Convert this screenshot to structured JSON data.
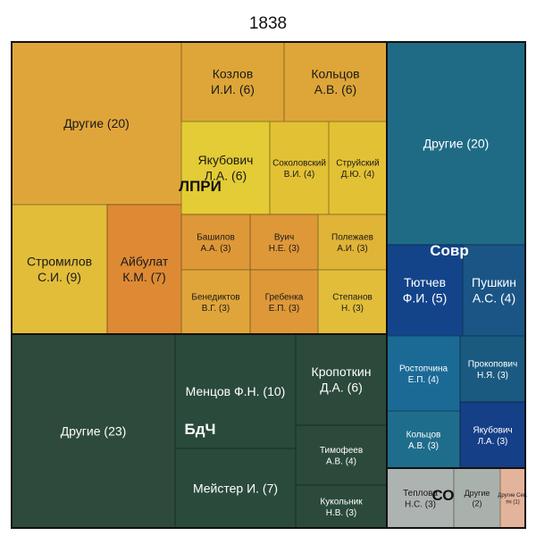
{
  "chart_data": {
    "type": "treemap",
    "title": "1838",
    "groups": [
      {
        "label": "ЛПРИ",
        "color": "#c99a2e",
        "cells": [
          {
            "label": "Другие (20)",
            "value": 20,
            "color": "#e0a53a"
          },
          {
            "label": "Стромилов С.И. (9)",
            "value": 9,
            "color": "#e2bd3a"
          },
          {
            "label": "Айбулат К.М. (7)",
            "value": 7,
            "color": "#de8a35"
          },
          {
            "label": "Козлов И.И. (6)",
            "value": 6,
            "color": "#dea638"
          },
          {
            "label": "Кольцов А.В. (6)",
            "value": 6,
            "color": "#dea638"
          },
          {
            "label": "Якубович Л.А. (6)",
            "value": 6,
            "color": "#e3cc35"
          },
          {
            "label": "Соколовский В.И. (4)",
            "value": 4,
            "color": "#e3c134"
          },
          {
            "label": "Струйский Д.Ю. (4)",
            "value": 4,
            "color": "#e3c134"
          },
          {
            "label": "Башилов А.А. (3)",
            "value": 3,
            "color": "#de9838"
          },
          {
            "label": "Вуич Н.Е. (3)",
            "value": 3,
            "color": "#de9838"
          },
          {
            "label": "Полежаев А.И. (3)",
            "value": 3,
            "color": "#e0b437"
          },
          {
            "label": "Бенедиктов В.Г. (3)",
            "value": 3,
            "color": "#e0a53a"
          },
          {
            "label": "Гребенка Е.П. (3)",
            "value": 3,
            "color": "#de9838"
          },
          {
            "label": "Степанов Н. (3)",
            "value": 3,
            "color": "#e2bd3a"
          }
        ]
      },
      {
        "label": "Совр",
        "color": "#1f6b86",
        "cells": [
          {
            "label": "Другие (20)",
            "value": 20,
            "color": "#1f6b86"
          },
          {
            "label": "Тютчев Ф.И. (5)",
            "value": 5,
            "color": "#13448a"
          },
          {
            "label": "Пушкин А.С. (4)",
            "value": 4,
            "color": "#1a5585"
          },
          {
            "label": "Ростопчина Е.П. (4)",
            "value": 4,
            "color": "#1b6a96"
          },
          {
            "label": "Прокопович Н.Я. (3)",
            "value": 3,
            "color": "#1a5a80"
          },
          {
            "label": "Кольцов А.В. (3)",
            "value": 3,
            "color": "#1f6d8c"
          },
          {
            "label": "Якубович Л.А. (3)",
            "value": 3,
            "color": "#153f86"
          }
        ]
      },
      {
        "label": "БдЧ",
        "color": "#2b4a3c",
        "cells": [
          {
            "label": "Другие (23)",
            "value": 23,
            "color": "#2d4a3c"
          },
          {
            "label": "Менцов Ф.Н. (10)",
            "value": 10,
            "color": "#2a4a3c"
          },
          {
            "label": "Мейстер И. (7)",
            "value": 7,
            "color": "#2a4a3c"
          },
          {
            "label": "Кропоткин Д.А. (6)",
            "value": 6,
            "color": "#2b4a3c"
          },
          {
            "label": "Тимофеев А.В. (4)",
            "value": 4,
            "color": "#2b4a3c"
          },
          {
            "label": "Кукольник Н.В. (3)",
            "value": 3,
            "color": "#2b4a3c"
          }
        ]
      },
      {
        "label": "СО",
        "color": "#a9b1ad",
        "cells": [
          {
            "label": "Теплова Н.С. (3)",
            "value": 3,
            "color": "#adb3b0"
          },
          {
            "label": "Другие (2)",
            "value": 2,
            "color": "#a9b1ad"
          },
          {
            "label": "Другие Сев. пч (1)",
            "value": 1,
            "color": "#e4b39b"
          }
        ]
      }
    ]
  }
}
